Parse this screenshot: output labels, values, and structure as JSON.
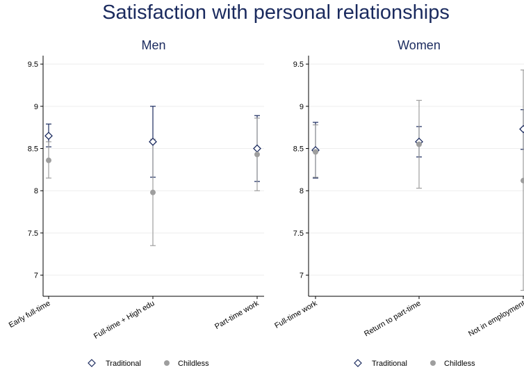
{
  "title": "Satisfaction with personal relationships",
  "colors": {
    "title": "#1a2a5e",
    "traditional": "#1a2a5e",
    "childless": "#9e9e9e",
    "grid": "#eeeeee",
    "axis": "#000000"
  },
  "chart_data": [
    {
      "type": "scatter",
      "title": "Men",
      "categories": [
        "Early full-time",
        "Full-time + High edu",
        "Part-time work"
      ],
      "ylim": [
        6.75,
        9.6
      ],
      "yticks": [
        7,
        7.5,
        8,
        8.5,
        9,
        9.5
      ],
      "ytick_labels": [
        "7",
        "7.5",
        "8",
        "8.5",
        "9",
        "9.5"
      ],
      "grid": true,
      "legend": "bottom",
      "series": [
        {
          "name": "Traditional",
          "marker": "diamond-open",
          "values": [
            8.65,
            8.58,
            8.5
          ],
          "ci_low": [
            8.52,
            8.16,
            8.11
          ],
          "ci_high": [
            8.79,
            9.0,
            8.89
          ]
        },
        {
          "name": "Childless",
          "marker": "circle-filled",
          "values": [
            8.36,
            7.98,
            8.43
          ],
          "ci_low": [
            8.15,
            7.35,
            8.0
          ],
          "ci_high": [
            8.58,
            8.61,
            8.86
          ]
        }
      ]
    },
    {
      "type": "scatter",
      "title": "Women",
      "categories": [
        "Full-time work",
        "Return to part-time",
        "Not in employment"
      ],
      "ylim": [
        6.75,
        9.6
      ],
      "yticks": [
        7,
        7.5,
        8,
        8.5,
        9,
        9.5
      ],
      "ytick_labels": [
        "7",
        "7.5",
        "8",
        "8.5",
        "9",
        "9.5"
      ],
      "grid": true,
      "legend": "bottom",
      "series": [
        {
          "name": "Traditional",
          "marker": "diamond-open",
          "values": [
            8.48,
            8.58,
            8.73
          ],
          "ci_low": [
            8.15,
            8.4,
            8.49
          ],
          "ci_high": [
            8.81,
            8.76,
            8.96
          ]
        },
        {
          "name": "Childless",
          "marker": "circle-filled",
          "values": [
            8.46,
            8.55,
            8.12
          ],
          "ci_low": [
            8.16,
            8.03,
            6.82
          ],
          "ci_high": [
            8.78,
            9.07,
            9.43
          ]
        }
      ]
    }
  ]
}
